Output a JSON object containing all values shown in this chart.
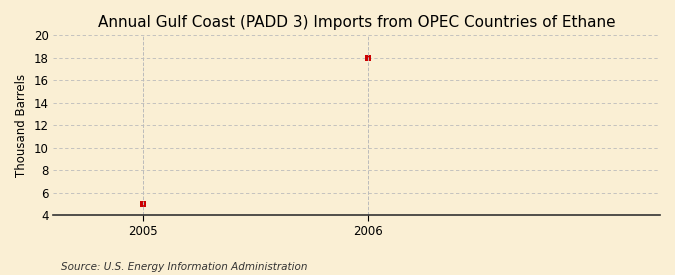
{
  "title": "Annual Gulf Coast (PADD 3) Imports from OPEC Countries of Ethane",
  "ylabel": "Thousand Barrels",
  "source_text": "Source: U.S. Energy Information Administration",
  "x_data": [
    2005.0,
    2006.0
  ],
  "y_data": [
    5,
    18
  ],
  "xlim": [
    2004.6,
    2007.3
  ],
  "ylim": [
    4,
    20
  ],
  "yticks": [
    4,
    6,
    8,
    10,
    12,
    14,
    16,
    18,
    20
  ],
  "xticks": [
    2005,
    2006
  ],
  "marker_color": "#cc0000",
  "marker_size": 4,
  "grid_color": "#bbbbbb",
  "background_color": "#faefd4",
  "title_fontsize": 11,
  "label_fontsize": 8.5,
  "tick_fontsize": 8.5,
  "source_fontsize": 7.5
}
